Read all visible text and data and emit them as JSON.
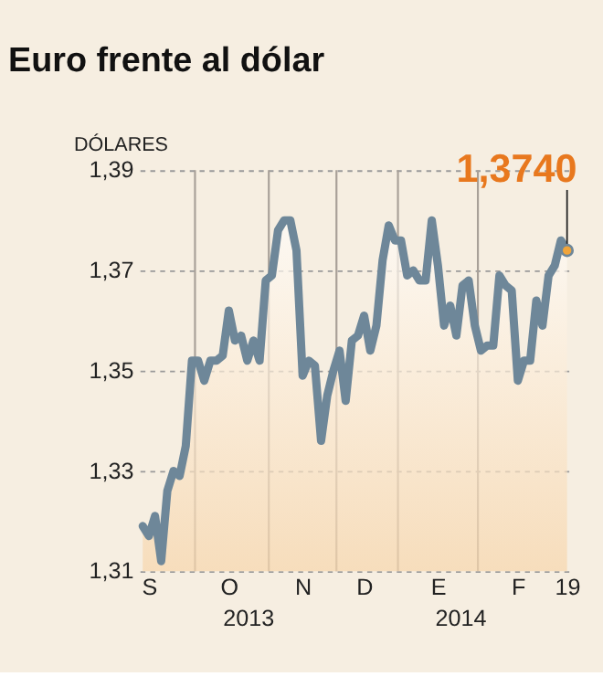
{
  "chart_data": {
    "type": "area",
    "title": "Euro frente al dólar",
    "ylabel": "DÓLARES",
    "categories": [
      null,
      "S",
      null,
      null,
      null,
      null,
      null,
      null,
      null,
      null,
      null,
      null,
      null,
      null,
      "O",
      null,
      null,
      null,
      null,
      null,
      null,
      null,
      null,
      null,
      null,
      null,
      "N",
      null,
      null,
      null,
      null,
      null,
      null,
      null,
      null,
      null,
      "D",
      null,
      null,
      null,
      null,
      null,
      null,
      null,
      null,
      null,
      null,
      null,
      "E",
      null,
      null,
      null,
      null,
      null,
      null,
      null,
      null,
      null,
      null,
      null,
      null,
      "F",
      null,
      null,
      null,
      null,
      null,
      null,
      null,
      "19"
    ],
    "series": [
      {
        "color": "#6e8799",
        "values": [
          1.319,
          1.317,
          1.321,
          1.312,
          1.326,
          1.33,
          1.329,
          1.335,
          1.352,
          1.352,
          1.348,
          1.352,
          1.352,
          1.353,
          1.362,
          1.356,
          1.357,
          1.352,
          1.356,
          1.352,
          1.368,
          1.369,
          1.378,
          1.38,
          1.38,
          1.374,
          1.349,
          1.352,
          1.351,
          1.336,
          1.345,
          1.35,
          1.354,
          1.344,
          1.356,
          1.357,
          1.361,
          1.354,
          1.359,
          1.372,
          1.379,
          1.376,
          1.376,
          1.369,
          1.37,
          1.368,
          1.368,
          1.38,
          1.371,
          1.359,
          1.363,
          1.357,
          1.367,
          1.368,
          1.359,
          1.354,
          1.355,
          1.355,
          1.369,
          1.367,
          1.366,
          1.348,
          1.352,
          1.352,
          1.364,
          1.359,
          1.369,
          1.371,
          1.376,
          1.374
        ]
      }
    ],
    "ylim": [
      1.31,
      1.39
    ],
    "yticks": [
      {
        "value": 1.31,
        "label": "1,31"
      },
      {
        "value": 1.33,
        "label": "1,33"
      },
      {
        "value": 1.35,
        "label": "1,35"
      },
      {
        "value": 1.37,
        "label": "1,37"
      },
      {
        "value": 1.39,
        "label": "1,39"
      }
    ],
    "grid": "y",
    "annotations": [
      {
        "text": "1,3740",
        "x": "19",
        "y": 1.374
      },
      "2013",
      "2014"
    ]
  }
}
